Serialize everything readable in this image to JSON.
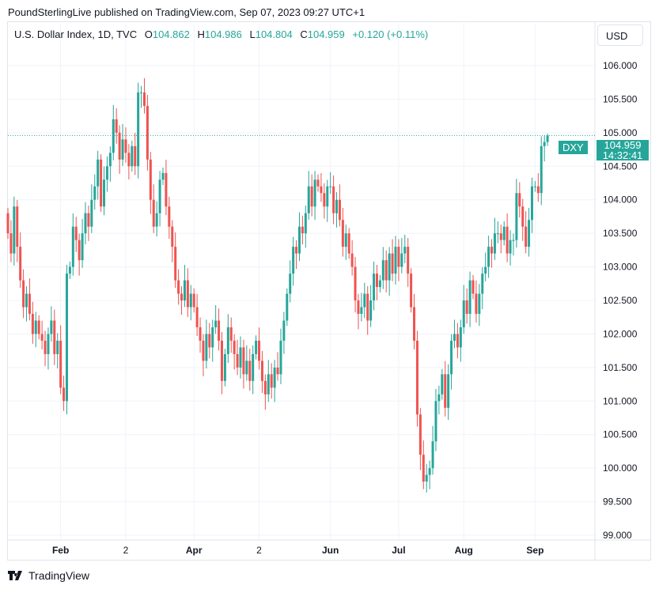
{
  "publisher_line": "PoundSterlingLive published on TradingView.com, Sep 07, 2023 09:27 UTC+1",
  "legend": {
    "symbol": "U.S. Dollar Index, 1D, TVC",
    "o_label": "O",
    "o": "104.862",
    "h_label": "H",
    "h": "104.986",
    "l_label": "L",
    "l": "104.804",
    "c_label": "C",
    "c": "104.959",
    "change": "+0.120 (+0.11%)"
  },
  "currency_button": "USD",
  "price_tag": {
    "symbol": "DXY",
    "price": "104.959",
    "countdown": "14:32:41"
  },
  "footer": {
    "brand": "TradingView"
  },
  "colors": {
    "up": "#26a69a",
    "down": "#ef5350",
    "grid": "#f0f3fa"
  },
  "chart_data": {
    "type": "candlestick",
    "title": "U.S. Dollar Index, 1D, TVC",
    "ylim": [
      99.0,
      106.0
    ],
    "y_ticks": [
      "106.000",
      "105.500",
      "105.000",
      "104.500",
      "104.000",
      "103.500",
      "103.000",
      "102.500",
      "102.000",
      "101.500",
      "101.000",
      "100.500",
      "100.000",
      "99.500",
      "99.000"
    ],
    "x_ticks": [
      {
        "label": "Feb",
        "index": 17
      },
      {
        "label": "2",
        "index": 38
      },
      {
        "label": "Apr",
        "index": 60
      },
      {
        "label": "2",
        "index": 81
      },
      {
        "label": "Jun",
        "index": 104
      },
      {
        "label": "Jul",
        "index": 126
      },
      {
        "label": "Aug",
        "index": 147
      },
      {
        "label": "Sep",
        "index": 170
      }
    ],
    "start_open": 103.8,
    "closes": [
      103.5,
      103.2,
      103.9,
      103.3,
      102.8,
      102.4,
      102.6,
      102.3,
      102.0,
      102.2,
      102.0,
      101.9,
      101.7,
      102.0,
      102.2,
      101.7,
      101.9,
      101.2,
      101.0,
      102.9,
      103.0,
      103.6,
      103.4,
      103.1,
      103.5,
      103.8,
      103.6,
      104.0,
      104.2,
      104.6,
      103.9,
      104.3,
      104.5,
      104.7,
      105.2,
      105.0,
      104.6,
      104.9,
      104.7,
      104.5,
      104.8,
      104.5,
      105.6,
      105.6,
      105.4,
      104.6,
      104.0,
      103.6,
      103.8,
      104.3,
      104.4,
      103.9,
      103.6,
      103.3,
      102.8,
      102.6,
      102.5,
      102.8,
      102.4,
      102.6,
      102.4,
      102.1,
      101.9,
      101.6,
      102.0,
      101.8,
      102.1,
      102.2,
      101.9,
      101.3,
      101.7,
      102.1,
      101.9,
      101.7,
      101.5,
      101.8,
      101.4,
      101.6,
      101.3,
      101.7,
      101.9,
      101.6,
      101.3,
      101.1,
      101.4,
      101.2,
      101.5,
      101.4,
      101.9,
      102.2,
      102.6,
      102.9,
      103.3,
      103.2,
      103.6,
      103.5,
      103.8,
      104.2,
      103.9,
      104.3,
      104.2,
      104.1,
      103.9,
      104.2,
      104.2,
      103.8,
      104.0,
      103.7,
      103.3,
      103.5,
      103.2,
      103.0,
      102.5,
      102.3,
      102.4,
      102.6,
      102.2,
      102.5,
      102.9,
      102.7,
      102.8,
      103.1,
      102.8,
      103.2,
      102.9,
      103.3,
      103.0,
      103.2,
      103.3,
      102.9,
      102.4,
      101.9,
      100.8,
      100.2,
      99.8,
      99.9,
      100.0,
      100.4,
      101.0,
      101.1,
      101.4,
      100.9,
      101.4,
      101.9,
      102.0,
      101.8,
      102.1,
      102.5,
      102.3,
      102.8,
      102.6,
      102.3,
      102.6,
      102.9,
      103.0,
      103.3,
      103.2,
      103.5,
      103.5,
      103.4,
      103.6,
      103.2,
      103.4,
      103.4,
      104.1,
      103.9,
      103.6,
      103.3,
      103.7,
      104.2,
      104.2,
      104.1,
      104.8,
      104.862,
      104.959
    ],
    "last_bar": {
      "open": 104.862,
      "high": 104.986,
      "low": 104.804,
      "close": 104.959
    }
  }
}
